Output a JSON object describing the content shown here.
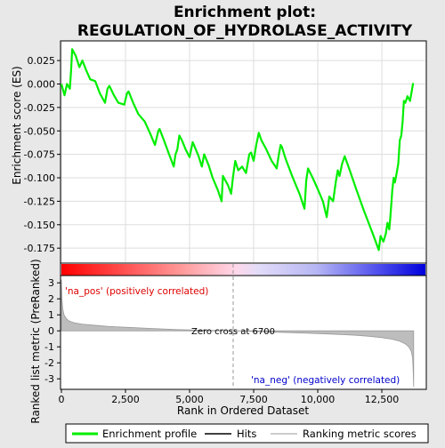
{
  "chart_data": [
    {
      "type": "line",
      "title": "Enrichment plot:\nREGULATION_OF_HYDROLASE_ACTIVITY",
      "ylabel": "Enrichment score (ES)",
      "xlim": [
        0,
        14200
      ],
      "ylim": [
        -0.19,
        0.045
      ],
      "yticks": [
        0.025,
        0.0,
        -0.025,
        -0.05,
        -0.075,
        -0.1,
        -0.125,
        -0.15,
        -0.175
      ],
      "ytick_labels": [
        "0.025",
        "0.000",
        "-0.025",
        "-0.050",
        "-0.075",
        "-0.100",
        "-0.125",
        "-0.150",
        "-0.175"
      ],
      "grid": true,
      "color": "#00ee00",
      "series": [
        {
          "name": "Enrichment profile",
          "x": [
            0,
            120,
            220,
            330,
            380,
            420,
            560,
            700,
            820,
            960,
            1120,
            1320,
            1500,
            1700,
            1800,
            1870,
            2050,
            2220,
            2450,
            2560,
            2620,
            2800,
            3000,
            3250,
            3450,
            3650,
            3780,
            3830,
            4000,
            4200,
            4380,
            4450,
            4520,
            4600,
            4700,
            4850,
            5000,
            5120,
            5200,
            5350,
            5480,
            5570,
            5750,
            5900,
            6100,
            6250,
            6300,
            6500,
            6620,
            6690,
            6780,
            6900,
            7050,
            7200,
            7330,
            7400,
            7500,
            7600,
            7700,
            7800,
            8000,
            8200,
            8400,
            8470,
            8550,
            8600,
            8750,
            9000,
            9300,
            9480,
            9550,
            9620,
            9800,
            10000,
            10200,
            10350,
            10450,
            10600,
            10700,
            10780,
            10850,
            10950,
            11050,
            11250,
            11500,
            11800,
            12150,
            12380,
            12450,
            12560,
            12650,
            12720,
            12790,
            12830,
            12870,
            12910,
            12960,
            13010,
            13080,
            13140,
            13200,
            13260,
            13310,
            13360,
            13420,
            13500,
            13600,
            13650,
            13720
          ],
          "y": [
            0.0,
            -0.012,
            0.0,
            -0.005,
            0.015,
            0.037,
            0.03,
            0.018,
            0.025,
            0.015,
            0.005,
            0.003,
            -0.01,
            -0.02,
            -0.005,
            -0.002,
            -0.012,
            -0.02,
            -0.022,
            -0.01,
            -0.008,
            -0.02,
            -0.032,
            -0.04,
            -0.052,
            -0.065,
            -0.05,
            -0.048,
            -0.06,
            -0.075,
            -0.088,
            -0.075,
            -0.07,
            -0.055,
            -0.06,
            -0.07,
            -0.078,
            -0.062,
            -0.067,
            -0.077,
            -0.088,
            -0.075,
            -0.087,
            -0.1,
            -0.113,
            -0.125,
            -0.098,
            -0.108,
            -0.117,
            -0.1,
            -0.082,
            -0.092,
            -0.088,
            -0.095,
            -0.075,
            -0.073,
            -0.082,
            -0.065,
            -0.052,
            -0.06,
            -0.07,
            -0.082,
            -0.09,
            -0.077,
            -0.065,
            -0.067,
            -0.08,
            -0.098,
            -0.118,
            -0.133,
            -0.103,
            -0.09,
            -0.1,
            -0.112,
            -0.125,
            -0.142,
            -0.12,
            -0.125,
            -0.105,
            -0.092,
            -0.098,
            -0.085,
            -0.077,
            -0.092,
            -0.112,
            -0.135,
            -0.16,
            -0.177,
            -0.162,
            -0.168,
            -0.16,
            -0.148,
            -0.155,
            -0.143,
            -0.128,
            -0.113,
            -0.1,
            -0.105,
            -0.095,
            -0.085,
            -0.06,
            -0.055,
            -0.04,
            -0.018,
            -0.02,
            -0.013,
            -0.018,
            -0.01,
            0.001
          ]
        }
      ]
    },
    {
      "type": "hits",
      "legend_label": "Hits",
      "xlim": [
        0,
        14200
      ],
      "hits": [
        160,
        330,
        420,
        530,
        820,
        1320,
        1720,
        1780,
        1870,
        2230,
        2560,
        2610,
        3230,
        3730,
        3770,
        3830,
        4380,
        4450,
        4600,
        5130,
        5180,
        5570,
        6250,
        6300,
        6650,
        6780,
        7050,
        7230,
        7330,
        7400,
        7600,
        7650,
        7700,
        8450,
        8470,
        8550,
        8600,
        9500,
        9580,
        9620,
        10300,
        10450,
        10600,
        10700,
        10790,
        10850,
        11050,
        12380,
        12560,
        12650,
        12720,
        12800,
        12830,
        12870,
        12910,
        12960,
        13010,
        13090,
        13140,
        13210,
        13260,
        13330,
        13380,
        13510,
        13720
      ]
    },
    {
      "type": "area",
      "xlabel": "Rank in Ordered Dataset",
      "ylabel": "Ranked list metric (PreRanked)",
      "xlim": [
        0,
        14200
      ],
      "ylim": [
        -3.6,
        3.4
      ],
      "xticks": [
        0,
        2500,
        5000,
        7500,
        10000,
        12500
      ],
      "xtick_labels": [
        "0",
        "2,500",
        "5,000",
        "7,500",
        "10,000",
        "12,500"
      ],
      "yticks": [
        3,
        2,
        1,
        0,
        -1,
        -2,
        -3
      ],
      "ytick_labels": [
        "3",
        "2",
        "1",
        "0",
        "-1",
        "-2",
        "-3"
      ],
      "zero_cross": 6700,
      "zero_cross_label": "Zero cross at 6700",
      "pos_label": "'na_pos' (positively correlated)",
      "neg_label": "'na_neg' (negatively correlated)",
      "series": [
        {
          "name": "Ranking metric scores",
          "x": [
            0,
            20,
            50,
            100,
            200,
            300,
            500,
            800,
            1200,
            1800,
            2500,
            3500,
            4500,
            5500,
            6700,
            7500,
            8500,
            9500,
            10500,
            11500,
            12000,
            12500,
            12900,
            13200,
            13400,
            13550,
            13650,
            13700,
            13720,
            13740
          ],
          "values": [
            3.2,
            2.0,
            1.4,
            1.0,
            0.75,
            0.62,
            0.5,
            0.42,
            0.36,
            0.28,
            0.22,
            0.15,
            0.08,
            0.04,
            0.0,
            -0.04,
            -0.09,
            -0.14,
            -0.2,
            -0.28,
            -0.34,
            -0.42,
            -0.52,
            -0.65,
            -0.8,
            -1.0,
            -1.3,
            -1.7,
            -2.4,
            -3.5
          ]
        }
      ]
    }
  ],
  "legend": {
    "items": [
      {
        "label": "Enrichment profile",
        "color": "#00ee00"
      },
      {
        "label": "Hits",
        "color": "#000000"
      },
      {
        "label": "Ranking metric scores",
        "color": "#bbbbbb"
      }
    ]
  }
}
